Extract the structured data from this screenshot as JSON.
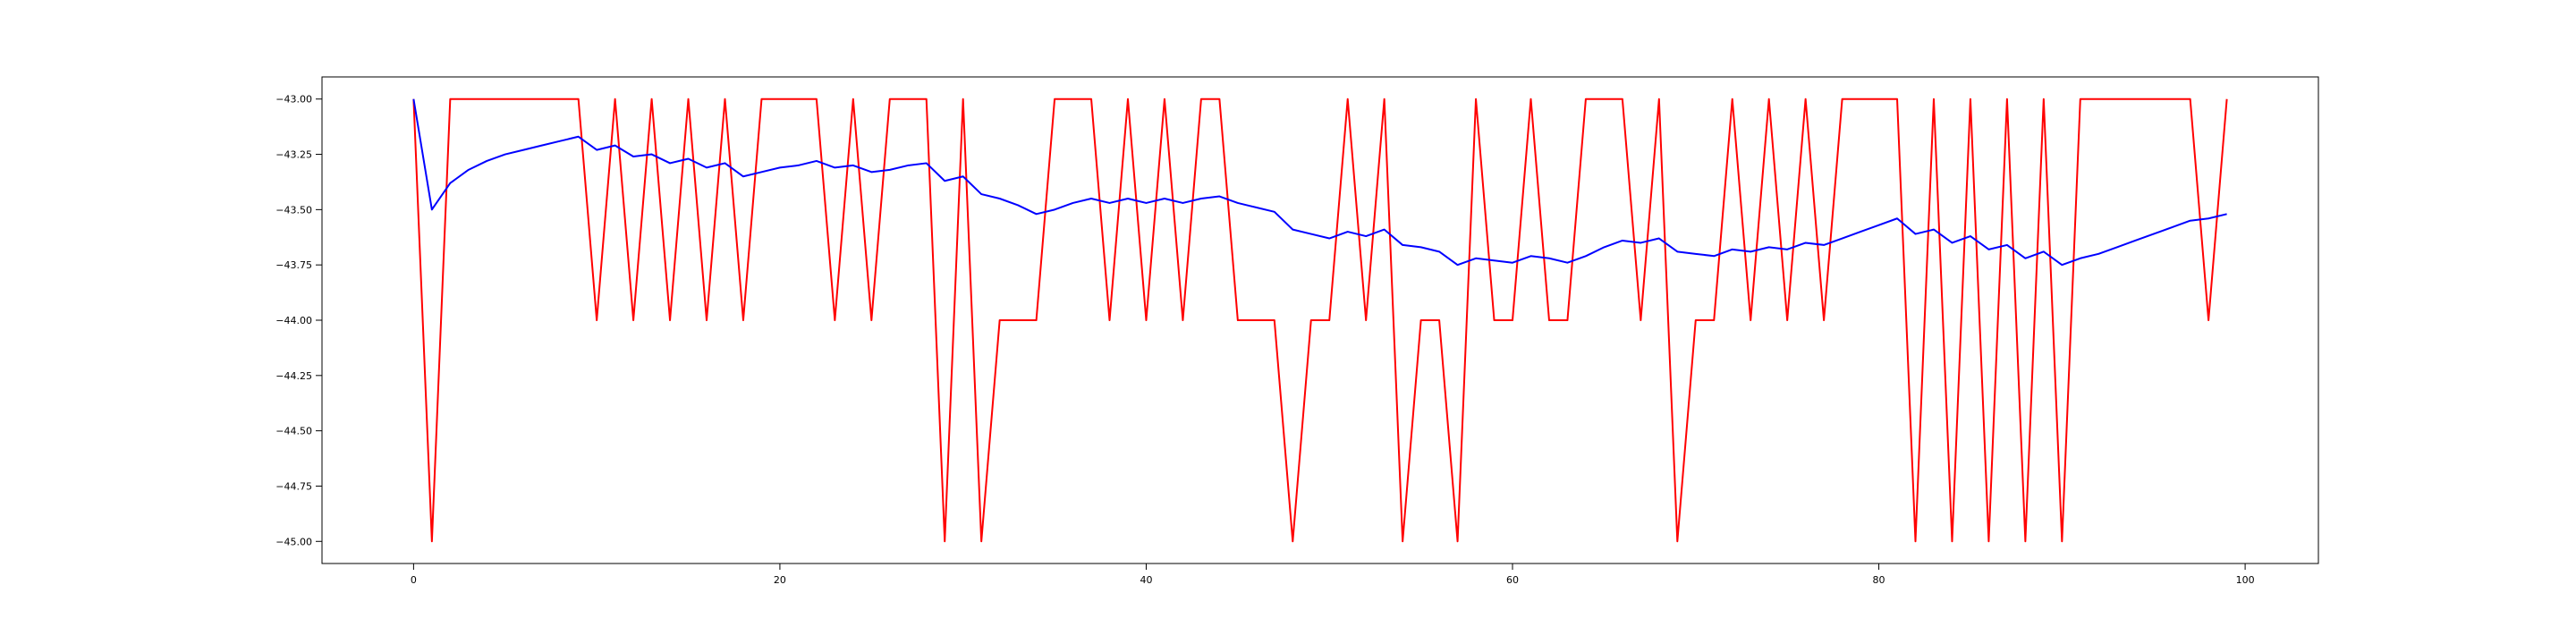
{
  "chart_data": {
    "type": "line",
    "title": "",
    "xlabel": "",
    "ylabel": "",
    "xlim": [
      -5,
      104
    ],
    "ylim": [
      -45.1,
      -42.9
    ],
    "grid": false,
    "x_ticks": [
      0,
      20,
      40,
      60,
      80,
      100
    ],
    "x_tick_labels": [
      "0",
      "20",
      "40",
      "60",
      "80",
      "100"
    ],
    "y_ticks": [
      -43.0,
      -43.25,
      -43.5,
      -43.75,
      -44.0,
      -44.25,
      -44.5,
      -44.75,
      -45.0
    ],
    "y_tick_labels": [
      "−43.00",
      "−43.25",
      "−43.50",
      "−43.75",
      "−44.00",
      "−44.25",
      "−44.50",
      "−44.75",
      "−45.00"
    ],
    "x": [
      0,
      1,
      2,
      3,
      4,
      5,
      6,
      7,
      8,
      9,
      10,
      11,
      12,
      13,
      14,
      15,
      16,
      17,
      18,
      19,
      20,
      21,
      22,
      23,
      24,
      25,
      26,
      27,
      28,
      29,
      30,
      31,
      32,
      33,
      34,
      35,
      36,
      37,
      38,
      39,
      40,
      41,
      42,
      43,
      44,
      45,
      46,
      47,
      48,
      49,
      50,
      51,
      52,
      53,
      54,
      55,
      56,
      57,
      58,
      59,
      60,
      61,
      62,
      63,
      64,
      65,
      66,
      67,
      68,
      69,
      70,
      71,
      72,
      73,
      74,
      75,
      76,
      77,
      78,
      79,
      80,
      81,
      82,
      83,
      84,
      85,
      86,
      87,
      88,
      89,
      90,
      91,
      92,
      93,
      94,
      95,
      96,
      97,
      98,
      99
    ],
    "series": [
      {
        "color": "#ff0000",
        "values": [
          -43,
          -45,
          -43,
          -43,
          -43,
          -43,
          -43,
          -43,
          -43,
          -43,
          -44,
          -43,
          -44,
          -43,
          -44,
          -43,
          -44,
          -43,
          -44,
          -43,
          -43,
          -43,
          -43,
          -44,
          -43,
          -44,
          -43,
          -43,
          -43,
          -45,
          -43,
          -45,
          -44,
          -44,
          -44,
          -43,
          -43,
          -43,
          -44,
          -43,
          -44,
          -43,
          -44,
          -43,
          -43,
          -44,
          -44,
          -44,
          -45,
          -44,
          -44,
          -43,
          -44,
          -43,
          -45,
          -44,
          -44,
          -45,
          -43,
          -44,
          -44,
          -43,
          -44,
          -44,
          -43,
          -43,
          -43,
          -44,
          -43,
          -45,
          -44,
          -44,
          -43,
          -44,
          -43,
          -44,
          -43,
          -44,
          -43,
          -43,
          -43,
          -43,
          -45,
          -43,
          -45,
          -43,
          -45,
          -43,
          -45,
          -43,
          -45,
          -43,
          -43,
          -43,
          -43,
          -43,
          -43,
          -43,
          -44,
          -43
        ]
      },
      {
        "color": "#0000ff",
        "values": [
          -43,
          -43.5,
          -43.38,
          -43.32,
          -43.28,
          -43.25,
          -43.23,
          -43.21,
          -43.19,
          -43.17,
          -43.23,
          -43.21,
          -43.26,
          -43.25,
          -43.29,
          -43.27,
          -43.31,
          -43.29,
          -43.35,
          -43.33,
          -43.31,
          -43.3,
          -43.28,
          -43.31,
          -43.3,
          -43.33,
          -43.32,
          -43.3,
          -43.29,
          -43.37,
          -43.35,
          -43.43,
          -43.45,
          -43.48,
          -43.52,
          -43.5,
          -43.47,
          -43.45,
          -43.47,
          -43.45,
          -43.47,
          -43.45,
          -43.47,
          -43.45,
          -43.44,
          -43.47,
          -43.49,
          -43.51,
          -43.59,
          -43.61,
          -43.63,
          -43.6,
          -43.62,
          -43.59,
          -43.66,
          -43.67,
          -43.69,
          -43.75,
          -43.72,
          -43.73,
          -43.74,
          -43.71,
          -43.72,
          -43.74,
          -43.71,
          -43.67,
          -43.64,
          -43.65,
          -43.63,
          -43.69,
          -43.7,
          -43.71,
          -43.68,
          -43.69,
          -43.67,
          -43.68,
          -43.65,
          -43.66,
          -43.63,
          -43.6,
          -43.57,
          -43.54,
          -43.61,
          -43.59,
          -43.65,
          -43.62,
          -43.68,
          -43.66,
          -43.72,
          -43.69,
          -43.75,
          -43.72,
          -43.7,
          -43.67,
          -43.64,
          -43.61,
          -43.58,
          -43.55,
          -43.54,
          -43.52
        ]
      }
    ]
  }
}
